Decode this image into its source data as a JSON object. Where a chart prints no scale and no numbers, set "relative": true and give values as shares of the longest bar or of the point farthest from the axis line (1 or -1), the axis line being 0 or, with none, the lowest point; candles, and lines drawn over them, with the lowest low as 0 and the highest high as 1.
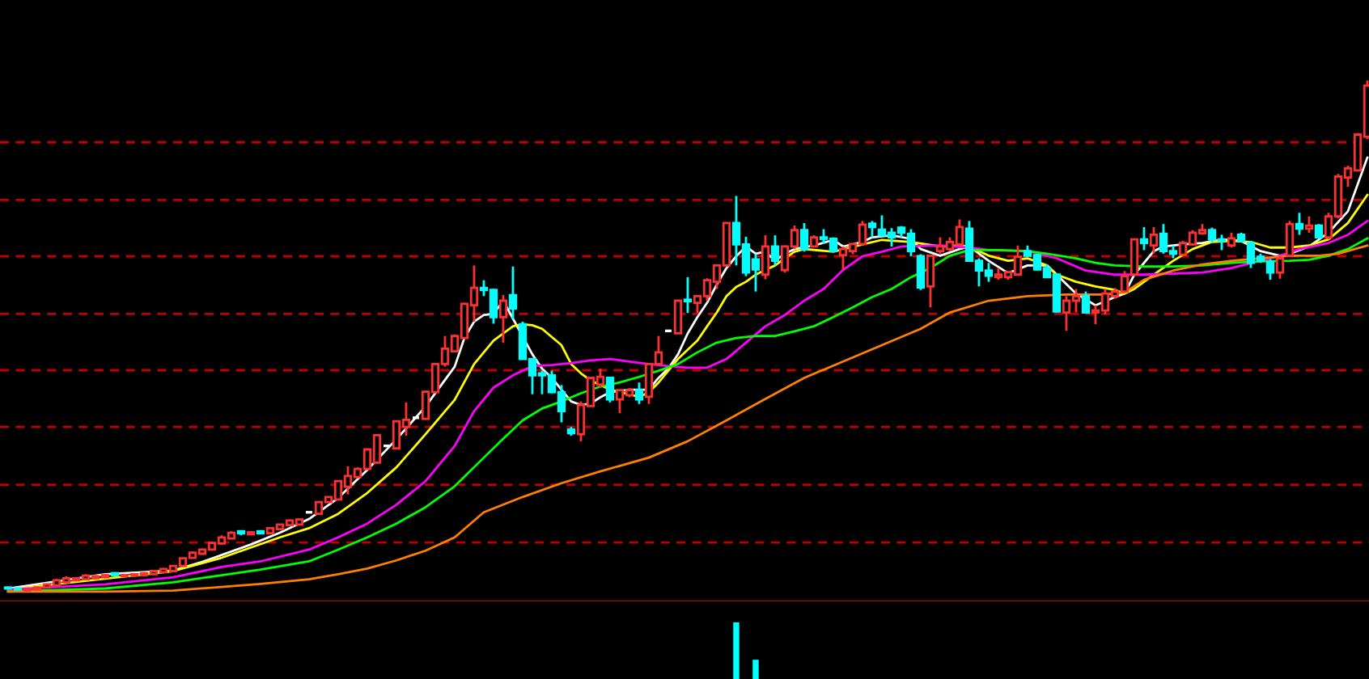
{
  "chart_data": [
    {
      "type": "candlestick",
      "relative": true,
      "categories": [
        null,
        null,
        null,
        null,
        null,
        null,
        null,
        null,
        null,
        null,
        null,
        null,
        null,
        null,
        null,
        null,
        null,
        null,
        null,
        null,
        null,
        null,
        null,
        null,
        null,
        null,
        null,
        null,
        null,
        null,
        null,
        null,
        null,
        null,
        null,
        null,
        null,
        null,
        null,
        null,
        null,
        null,
        null,
        null,
        null,
        null,
        null,
        null,
        null,
        null,
        null,
        null,
        null,
        null,
        null,
        null,
        null,
        null,
        null,
        null,
        null,
        null,
        null,
        null,
        null,
        null,
        null,
        null,
        null,
        null,
        null,
        null,
        null,
        null,
        null,
        null,
        null,
        null,
        null,
        null,
        null,
        null,
        null,
        null,
        null,
        null,
        null,
        null,
        null,
        null,
        null,
        null,
        null,
        null,
        null,
        null,
        null,
        null,
        null,
        null,
        null,
        null,
        null,
        null,
        null,
        null,
        null,
        null,
        null,
        null,
        null,
        null,
        null,
        null,
        null,
        null,
        null,
        null,
        null,
        null,
        null,
        null,
        null,
        null,
        null,
        null,
        null,
        null,
        null,
        null,
        null,
        null,
        null,
        null,
        null,
        null,
        null,
        null,
        null,
        null,
        null
      ],
      "ohlc": [
        [
          0.008,
          0.01,
          0.004,
          0.006
        ],
        [
          0.006,
          0.008,
          0.002,
          0.004
        ],
        [
          0.002,
          0.006,
          0.0,
          0.004
        ],
        [
          0.004,
          0.01,
          0.002,
          0.008
        ],
        [
          0.008,
          0.016,
          0.006,
          0.014
        ],
        [
          0.012,
          0.025,
          0.01,
          0.022
        ],
        [
          0.018,
          0.03,
          0.016,
          0.026
        ],
        [
          0.022,
          0.028,
          0.02,
          0.026
        ],
        [
          0.024,
          0.034,
          0.022,
          0.031
        ],
        [
          0.026,
          0.032,
          0.024,
          0.03
        ],
        [
          0.028,
          0.034,
          0.026,
          0.032
        ],
        [
          0.036,
          0.038,
          0.03,
          0.032
        ],
        [
          0.03,
          0.034,
          0.028,
          0.032
        ],
        [
          0.031,
          0.036,
          0.029,
          0.034
        ],
        [
          0.032,
          0.038,
          0.03,
          0.036
        ],
        [
          0.034,
          0.042,
          0.032,
          0.04
        ],
        [
          0.038,
          0.046,
          0.036,
          0.044
        ],
        [
          0.04,
          0.052,
          0.038,
          0.05
        ],
        [
          0.05,
          0.066,
          0.048,
          0.065
        ],
        [
          0.066,
          0.078,
          0.064,
          0.076
        ],
        [
          0.074,
          0.084,
          0.072,
          0.082
        ],
        [
          0.082,
          0.097,
          0.08,
          0.095
        ],
        [
          0.094,
          0.11,
          0.092,
          0.106
        ],
        [
          0.104,
          0.118,
          0.102,
          0.115
        ],
        [
          0.118,
          0.12,
          0.11,
          0.114
        ],
        [
          0.112,
          0.118,
          0.11,
          0.116
        ],
        [
          0.118,
          0.12,
          0.112,
          0.114
        ],
        [
          0.114,
          0.126,
          0.112,
          0.124
        ],
        [
          0.122,
          0.132,
          0.12,
          0.131
        ],
        [
          0.13,
          0.141,
          0.128,
          0.139
        ],
        [
          0.131,
          0.142,
          0.129,
          0.141
        ],
        [
          0.155,
          0.156,
          0.154,
          0.155
        ],
        [
          0.152,
          0.177,
          0.15,
          0.175
        ],
        [
          0.175,
          0.185,
          0.173,
          0.185
        ],
        [
          0.18,
          0.218,
          0.178,
          0.216
        ],
        [
          0.205,
          0.245,
          0.19,
          0.226
        ],
        [
          0.224,
          0.243,
          0.222,
          0.24
        ],
        [
          0.24,
          0.28,
          0.238,
          0.278
        ],
        [
          0.252,
          0.308,
          0.25,
          0.306
        ],
        [
          0.285,
          0.286,
          0.284,
          0.285
        ],
        [
          0.28,
          0.335,
          0.278,
          0.333
        ],
        [
          0.322,
          0.37,
          0.305,
          0.336
        ],
        [
          0.34,
          0.341,
          0.339,
          0.34
        ],
        [
          0.338,
          0.393,
          0.336,
          0.391
        ],
        [
          0.39,
          0.446,
          0.388,
          0.445
        ],
        [
          0.445,
          0.5,
          0.44,
          0.475
        ],
        [
          0.47,
          0.503,
          0.468,
          0.5
        ],
        [
          0.496,
          0.565,
          0.494,
          0.563
        ],
        [
          0.56,
          0.638,
          0.528,
          0.594
        ],
        [
          0.594,
          0.609,
          0.578,
          0.59
        ],
        [
          0.59,
          0.592,
          0.524,
          0.537
        ],
        [
          0.537,
          0.58,
          0.487,
          0.569
        ],
        [
          0.58,
          0.636,
          0.533,
          0.554
        ],
        [
          0.523,
          0.528,
          0.455,
          0.455
        ],
        [
          0.455,
          0.455,
          0.386,
          0.423
        ],
        [
          0.427,
          0.432,
          0.386,
          0.423
        ],
        [
          0.423,
          0.432,
          0.388,
          0.39
        ],
        [
          0.39,
          0.404,
          0.331,
          0.353
        ],
        [
          0.317,
          0.322,
          0.305,
          0.31
        ],
        [
          0.308,
          0.372,
          0.294,
          0.365
        ],
        [
          0.363,
          0.418,
          0.363,
          0.418
        ],
        [
          0.405,
          0.436,
          0.398,
          0.42
        ],
        [
          0.418,
          0.42,
          0.37,
          0.376
        ],
        [
          0.376,
          0.394,
          0.349,
          0.394
        ],
        [
          0.384,
          0.398,
          0.38,
          0.394
        ],
        [
          0.394,
          0.409,
          0.367,
          0.376
        ],
        [
          0.381,
          0.445,
          0.367,
          0.445
        ],
        [
          0.445,
          0.5,
          0.445,
          0.468
        ],
        [
          0.51,
          0.511,
          0.509,
          0.51
        ],
        [
          0.505,
          0.569,
          0.505,
          0.569
        ],
        [
          0.571,
          0.615,
          0.545,
          0.568
        ],
        [
          0.565,
          0.578,
          0.545,
          0.578
        ],
        [
          0.578,
          0.613,
          0.569,
          0.609
        ],
        [
          0.606,
          0.638,
          0.592,
          0.638
        ],
        [
          0.638,
          0.721,
          0.638,
          0.721
        ],
        [
          0.721,
          0.774,
          0.638,
          0.679
        ],
        [
          0.679,
          0.694,
          0.617,
          0.624
        ],
        [
          0.65,
          0.66,
          0.587,
          0.63
        ],
        [
          0.62,
          0.697,
          0.611,
          0.675
        ],
        [
          0.675,
          0.697,
          0.638,
          0.647
        ],
        [
          0.629,
          0.677,
          0.624,
          0.675
        ],
        [
          0.675,
          0.716,
          0.67,
          0.707
        ],
        [
          0.707,
          0.721,
          0.665,
          0.67
        ],
        [
          0.675,
          0.697,
          0.675,
          0.693
        ],
        [
          0.693,
          0.709,
          0.68,
          0.69
        ],
        [
          0.69,
          0.693,
          0.665,
          0.666
        ],
        [
          0.658,
          0.675,
          0.629,
          0.67
        ],
        [
          0.666,
          0.68,
          0.66,
          0.68
        ],
        [
          0.68,
          0.725,
          0.677,
          0.718
        ],
        [
          0.72,
          0.725,
          0.693,
          0.713
        ],
        [
          0.708,
          0.736,
          0.695,
          0.697
        ],
        [
          0.702,
          0.711,
          0.675,
          0.693
        ],
        [
          0.712,
          0.715,
          0.693,
          0.702
        ],
        [
          0.7,
          0.709,
          0.656,
          0.666
        ],
        [
          0.656,
          0.66,
          0.59,
          0.595
        ],
        [
          0.597,
          0.657,
          0.556,
          0.657
        ],
        [
          0.666,
          0.693,
          0.661,
          0.675
        ],
        [
          0.67,
          0.693,
          0.666,
          0.684
        ],
        [
          0.679,
          0.728,
          0.675,
          0.713
        ],
        [
          0.71,
          0.725,
          0.647,
          0.647
        ],
        [
          0.647,
          0.652,
          0.597,
          0.628
        ],
        [
          0.628,
          0.643,
          0.606,
          0.618
        ],
        [
          0.615,
          0.633,
          0.61,
          0.62
        ],
        [
          0.615,
          0.625,
          0.61,
          0.625
        ],
        [
          0.62,
          0.677,
          0.62,
          0.655
        ],
        [
          0.666,
          0.677,
          0.655,
          0.657
        ],
        [
          0.658,
          0.661,
          0.628,
          0.63
        ],
        [
          0.633,
          0.64,
          0.615,
          0.615
        ],
        [
          0.62,
          0.623,
          0.546,
          0.548
        ],
        [
          0.546,
          0.578,
          0.51,
          0.569
        ],
        [
          0.569,
          0.592,
          0.546,
          0.578
        ],
        [
          0.578,
          0.587,
          0.546,
          0.546
        ],
        [
          0.546,
          0.56,
          0.523,
          0.55
        ],
        [
          0.55,
          0.592,
          0.542,
          0.583
        ],
        [
          0.578,
          0.594,
          0.573,
          0.587
        ],
        [
          0.587,
          0.627,
          0.587,
          0.617
        ],
        [
          0.62,
          0.689,
          0.62,
          0.689
        ],
        [
          0.689,
          0.713,
          0.668,
          0.682
        ],
        [
          0.677,
          0.713,
          0.661,
          0.698
        ],
        [
          0.7,
          0.719,
          0.661,
          0.666
        ],
        [
          0.666,
          0.677,
          0.652,
          0.661
        ],
        [
          0.659,
          0.686,
          0.657,
          0.682
        ],
        [
          0.679,
          0.707,
          0.677,
          0.702
        ],
        [
          0.701,
          0.719,
          0.698,
          0.707
        ],
        [
          0.707,
          0.712,
          0.682,
          0.689
        ],
        [
          0.689,
          0.698,
          0.668,
          0.686
        ],
        [
          0.677,
          0.702,
          0.673,
          0.691
        ],
        [
          0.698,
          0.702,
          0.684,
          0.686
        ],
        [
          0.682,
          0.686,
          0.633,
          0.643
        ],
        [
          0.655,
          0.661,
          0.643,
          0.647
        ],
        [
          0.645,
          0.65,
          0.61,
          0.624
        ],
        [
          0.624,
          0.657,
          0.612,
          0.652
        ],
        [
          0.657,
          0.725,
          0.657,
          0.719
        ],
        [
          0.719,
          0.741,
          0.698,
          0.71
        ],
        [
          0.71,
          0.734,
          0.702,
          0.716
        ],
        [
          0.716,
          0.719,
          0.691,
          0.693
        ],
        [
          0.693,
          0.741,
          0.689,
          0.734
        ],
        [
          0.734,
          0.817,
          0.73,
          0.812
        ],
        [
          0.81,
          0.833,
          0.792,
          0.828
        ],
        [
          0.824,
          0.897,
          0.824,
          0.894
        ],
        [
          0.89,
          1.0,
          0.885,
          0.99
        ]
      ],
      "series": [
        {
          "type": "line",
          "color": "#ffffff",
          "values": [
            0.006,
            null,
            null,
            null,
            null,
            null,
            null,
            null,
            null,
            null,
            0.034,
            null,
            null,
            null,
            null,
            null,
            null,
            0.041,
            null,
            null,
            0.058,
            null,
            null,
            null,
            null,
            0.092,
            null,
            null,
            0.115,
            null,
            null,
            0.142,
            null,
            null,
            0.183,
            null,
            null,
            0.238,
            null,
            null,
            0.298,
            null,
            null,
            0.362,
            null,
            null,
            0.44,
            0.496,
            0.528,
            0.541,
            0.543,
            0.569,
            null,
            null,
            0.464,
            0.436,
            0.418,
            0.395,
            0.372,
            0.365,
            0.368,
            0.38,
            0.39,
            null,
            0.395,
            null,
            0.395,
            0.418,
            0.436,
            0.464,
            0.505,
            0.537,
            0.565,
            0.601,
            0.633,
            0.656,
            0.675,
            0.661,
            0.665,
            0.647,
            0.661,
            0.67,
            null,
            0.677,
            null,
            0.688,
            0.675,
            null,
            0.684,
            0.693,
            null,
            0.697,
            null,
            0.69,
            0.67,
            null,
            0.657,
            null,
            0.67,
            0.675,
            null,
            0.647,
            null,
            0.623,
            null,
            0.638,
            null,
            0.638,
            0.62,
            null,
            0.583,
            null,
            0.56,
            null,
            0.576,
            0.583,
            0.62,
            null,
            0.666,
            0.675,
            null,
            0.679,
            null,
            0.682,
            null,
            0.689,
            null,
            0.686,
            null,
            0.666,
            null,
            0.657,
            0.661,
            null,
            0.675,
            null,
            0.702,
            null,
            0.744,
            null,
            0.849
          ]
        },
        {
          "type": "line",
          "color": "#ffff00",
          "values": [
            0.004,
            null,
            null,
            null,
            null,
            null,
            null,
            null,
            null,
            null,
            0.025,
            null,
            null,
            null,
            null,
            null,
            null,
            0.04,
            null,
            null,
            null,
            null,
            0.066,
            null,
            null,
            null,
            null,
            null,
            0.106,
            null,
            null,
            0.124,
            null,
            null,
            0.152,
            null,
            null,
            0.193,
            null,
            null,
            0.243,
            null,
            null,
            0.308,
            null,
            null,
            0.375,
            null,
            0.445,
            null,
            0.491,
            null,
            0.519,
            0.523,
            0.521,
            0.514,
            null,
            0.482,
            0.445,
            0.427,
            0.413,
            null,
            0.395,
            null,
            null,
            0.381,
            0.39,
            0.409,
            0.432,
            0.455,
            null,
            0.491,
            0.519,
            0.546,
            0.578,
            0.596,
            0.606,
            0.62,
            0.629,
            0.638,
            0.652,
            0.665,
            0.67,
            null,
            null,
            0.665,
            null,
            null,
            0.679,
            null,
            0.688,
            null,
            null,
            0.684,
            null,
            null,
            0.675,
            null,
            0.677,
            0.675,
            null,
            0.657,
            null,
            0.647,
            null,
            0.652,
            null,
            0.638,
            0.62,
            null,
            0.606,
            null,
            0.597,
            null,
            0.59,
            0.583,
            0.592,
            null,
            0.62,
            null,
            0.647,
            null,
            0.67,
            null,
            0.684,
            null,
            0.686,
            null,
            0.684,
            null,
            0.673,
            null,
            0.673,
            null,
            0.677,
            null,
            0.689,
            null,
            0.721,
            null,
            0.776
          ]
        },
        {
          "type": "line",
          "color": "#ff00ff",
          "values": [
            0.004,
            null,
            null,
            null,
            null,
            null,
            null,
            null,
            null,
            null,
            0.014,
            null,
            null,
            null,
            null,
            null,
            null,
            0.028,
            null,
            null,
            null,
            null,
            0.048,
            null,
            null,
            null,
            0.059,
            null,
            null,
            null,
            null,
            0.082,
            null,
            null,
            0.106,
            null,
            null,
            0.133,
            null,
            null,
            0.17,
            null,
            null,
            0.216,
            null,
            null,
            0.285,
            null,
            0.353,
            null,
            0.399,
            null,
            0.423,
            null,
            0.441,
            null,
            0.443,
            null,
            0.447,
            null,
            0.452,
            null,
            0.455,
            null,
            0.45,
            null,
            0.445,
            null,
            0.441,
            null,
            0.438,
            null,
            0.438,
            null,
            0.455,
            null,
            0.487,
            null,
            0.519,
            null,
            0.541,
            null,
            0.569,
            null,
            0.592,
            null,
            0.629,
            null,
            0.656,
            null,
            0.665,
            null,
            0.675,
            null,
            null,
            null,
            0.677,
            null,
            null,
            0.673,
            null,
            0.668,
            null,
            null,
            null,
            0.666,
            null,
            null,
            0.652,
            null,
            null,
            0.628,
            null,
            null,
            0.62,
            null,
            null,
            0.62,
            null,
            null,
            0.622,
            null,
            null,
            0.624,
            null,
            null,
            0.633,
            null,
            null,
            0.647,
            null,
            0.657,
            null,
            0.67,
            null,
            null,
            0.682,
            null,
            0.698,
            null,
            0.725
          ]
        },
        {
          "type": "line",
          "color": "#00ff00",
          "values": [
            0.0,
            null,
            null,
            null,
            null,
            null,
            null,
            null,
            null,
            null,
            0.006,
            null,
            null,
            null,
            null,
            null,
            null,
            0.018,
            null,
            null,
            null,
            null,
            0.032,
            null,
            null,
            null,
            0.043,
            null,
            null,
            null,
            null,
            0.059,
            null,
            null,
            0.082,
            null,
            null,
            0.106,
            null,
            null,
            0.133,
            null,
            null,
            0.165,
            null,
            null,
            0.206,
            null,
            null,
            0.262,
            null,
            0.299,
            null,
            0.335,
            null,
            0.358,
            null,
            0.372,
            null,
            0.388,
            null,
            0.401,
            null,
            0.409,
            null,
            0.42,
            null,
            0.432,
            null,
            0.445,
            null,
            0.468,
            null,
            0.487,
            null,
            0.496,
            null,
            0.5,
            null,
            0.5,
            null,
            0.509,
            null,
            0.519,
            null,
            0.537,
            null,
            0.556,
            null,
            0.576,
            null,
            0.592,
            null,
            0.615,
            null,
            0.633,
            null,
            0.657,
            null,
            0.668,
            null,
            null,
            0.668,
            null,
            null,
            0.666,
            null,
            0.661,
            null,
            null,
            0.652,
            null,
            0.643,
            null,
            0.638,
            null,
            null,
            0.636,
            null,
            null,
            0.636,
            null,
            null,
            0.638,
            null,
            null,
            0.643,
            null,
            null,
            0.646,
            null,
            null,
            0.647,
            null,
            0.649,
            null,
            0.657,
            null,
            0.67,
            null,
            0.691
          ]
        },
        {
          "type": "line",
          "color": "#ff8000",
          "values": [
            0.0,
            null,
            null,
            null,
            null,
            null,
            null,
            null,
            null,
            null,
            0.0,
            null,
            null,
            null,
            null,
            null,
            null,
            0.002,
            null,
            null,
            null,
            null,
            0.009,
            null,
            null,
            null,
            0.015,
            null,
            null,
            null,
            null,
            0.024,
            null,
            null,
            0.034,
            null,
            null,
            0.045,
            null,
            null,
            0.061,
            null,
            null,
            0.08,
            null,
            null,
            0.106,
            null,
            null,
            0.155,
            null,
            null,
            null,
            0.185,
            null,
            null,
            null,
            0.212,
            null,
            null,
            null,
            0.235,
            null,
            null,
            null,
            null,
            0.262,
            null,
            null,
            null,
            0.294,
            null,
            null,
            null,
            0.335,
            null,
            null,
            null,
            0.377,
            null,
            null,
            null,
            0.418,
            null,
            null,
            null,
            0.45,
            null,
            null,
            null,
            0.482,
            null,
            null,
            null,
            0.514,
            null,
            null,
            0.546,
            null,
            null,
            null,
            0.569,
            null,
            null,
            null,
            0.578,
            null,
            null,
            null,
            0.581,
            null,
            null,
            null,
            0.581,
            null,
            0.585,
            null,
            0.61,
            null,
            null,
            0.628,
            null,
            null,
            0.64,
            null,
            null,
            0.647,
            null,
            null,
            0.652,
            null,
            null,
            0.657,
            null,
            null,
            0.657,
            null,
            0.661,
            null,
            null,
            0.677
          ]
        }
      ],
      "ref_lines": [
        {
          "axis": "y",
          "value": 0.879,
          "color": "#c00000",
          "line_style": "dashed"
        },
        {
          "axis": "y",
          "value": 0.766,
          "color": "#c00000",
          "line_style": "dashed"
        },
        {
          "axis": "y",
          "value": 0.656,
          "color": "#c00000",
          "line_style": "dashed"
        },
        {
          "axis": "y",
          "value": 0.543,
          "color": "#c00000",
          "line_style": "dashed"
        },
        {
          "axis": "y",
          "value": 0.433,
          "color": "#c00000",
          "line_style": "dashed"
        },
        {
          "axis": "y",
          "value": 0.322,
          "color": "#c00000",
          "line_style": "dashed"
        },
        {
          "axis": "y",
          "value": 0.209,
          "color": "#c00000",
          "line_style": "dashed"
        },
        {
          "axis": "y",
          "value": 0.096,
          "color": "#c00000",
          "line_style": "dashed"
        }
      ]
    },
    {
      "type": "bar",
      "relative": true,
      "color": "#00ffff",
      "categories": [
        null,
        null,
        null,
        null,
        null,
        null,
        null,
        null,
        null,
        null,
        null,
        null,
        null,
        null,
        null,
        null,
        null,
        null,
        null,
        null,
        null,
        null,
        null,
        null,
        null,
        null,
        null,
        null,
        null,
        null,
        null,
        null,
        null,
        null,
        null,
        null,
        null,
        null,
        null,
        null,
        null,
        null,
        null,
        null,
        null,
        null,
        null,
        null,
        null,
        null,
        null,
        null,
        null,
        null,
        null,
        null,
        null,
        null,
        null,
        null,
        null,
        null,
        null,
        null,
        null,
        null,
        null,
        null,
        null,
        null,
        null,
        null,
        null,
        null,
        null,
        null,
        null,
        null,
        null,
        null,
        null,
        null,
        null,
        null,
        null,
        null,
        null,
        null,
        null,
        null,
        null,
        null,
        null,
        null,
        null,
        null,
        null,
        null,
        null,
        null,
        null,
        null,
        null,
        null,
        null,
        null,
        null,
        null,
        null,
        null,
        null,
        null,
        null,
        null,
        null,
        null,
        null,
        null,
        null,
        null,
        null,
        null,
        null,
        null,
        null,
        null,
        null,
        null,
        null,
        null,
        null,
        null,
        null,
        null,
        null,
        null,
        null,
        null,
        null,
        null,
        null
      ],
      "values": [
        null,
        null,
        null,
        null,
        null,
        null,
        null,
        null,
        null,
        null,
        null,
        null,
        null,
        null,
        null,
        null,
        null,
        null,
        null,
        null,
        null,
        null,
        null,
        null,
        null,
        null,
        null,
        null,
        null,
        null,
        null,
        null,
        null,
        null,
        null,
        null,
        null,
        null,
        null,
        null,
        null,
        null,
        null,
        null,
        null,
        null,
        null,
        null,
        null,
        null,
        null,
        null,
        null,
        null,
        null,
        null,
        null,
        null,
        null,
        null,
        null,
        null,
        null,
        null,
        null,
        null,
        null,
        null,
        null,
        null,
        null,
        null,
        null,
        null,
        null,
        1.0,
        null,
        0.34,
        null,
        null,
        null,
        null,
        null,
        null,
        null,
        null,
        null,
        null,
        null,
        null,
        null,
        null,
        null,
        null,
        null,
        null,
        null,
        null,
        null,
        null,
        null,
        null,
        null,
        null,
        null,
        null,
        null,
        null,
        null,
        null,
        null,
        null,
        null,
        null,
        null,
        null,
        null,
        null,
        null,
        null,
        null,
        null,
        null,
        null,
        null,
        null,
        null,
        null,
        null,
        null,
        null,
        null,
        null,
        null,
        null,
        null,
        null,
        null,
        null,
        null,
        null
      ]
    }
  ]
}
